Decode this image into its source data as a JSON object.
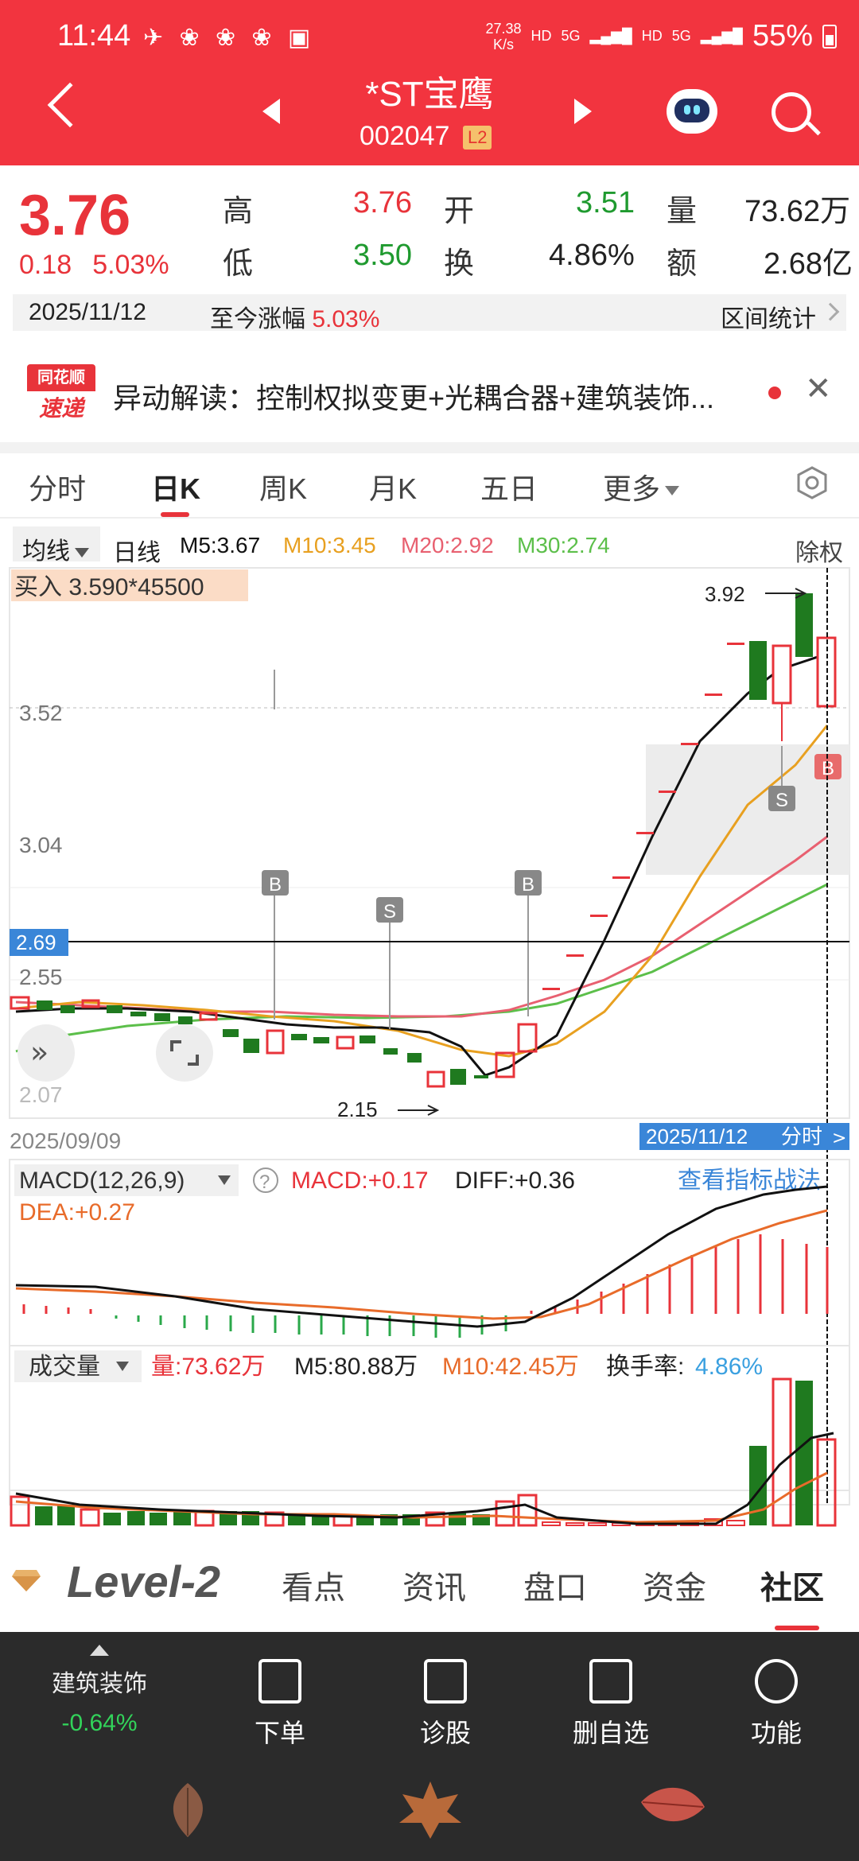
{
  "status_bar": {
    "time": "11:44",
    "speed_value": "27.38",
    "speed_unit": "K/s",
    "hd1": "HD",
    "net1": "5G",
    "hd2": "HD",
    "net2": "5G",
    "battery": "55%"
  },
  "header": {
    "stock_name": "*ST宝鹰",
    "stock_code": "002047",
    "level_badge": "L2"
  },
  "quote": {
    "price": "3.76",
    "change": "0.18",
    "change_pct": "5.03%",
    "high_label": "高",
    "high": "3.76",
    "open_label": "开",
    "open": "3.51",
    "volume_label": "量",
    "volume": "73.62万",
    "low_label": "低",
    "low": "3.50",
    "turnover_label": "换",
    "turnover": "4.86%",
    "amount_label": "额",
    "amount": "2.68亿"
  },
  "date_row": {
    "date": "2025/11/12",
    "since_label": "至今涨幅",
    "since_value": "5.03%",
    "range_stats": "区间统计"
  },
  "news": {
    "logo_top": "同花顺",
    "logo_bottom": "速递",
    "text": "异动解读：控制权拟变更+光耦合器+建筑装饰..."
  },
  "tabs": [
    {
      "label": "分时"
    },
    {
      "label": "日K"
    },
    {
      "label": "周K"
    },
    {
      "label": "月K"
    },
    {
      "label": "五日"
    },
    {
      "label": "更多"
    }
  ],
  "ma_row": {
    "selector": "均线",
    "period": "日线",
    "m5": "M5:3.67",
    "m10": "M10:3.45",
    "m20": "M20:2.92",
    "m30": "M30:2.74",
    "adjust": "除权"
  },
  "kchart": {
    "buy_label": "买入 3.590*45500",
    "y_labels": [
      "3.52",
      "3.04",
      "2.55",
      "2.07"
    ],
    "crosshair_value": "2.69",
    "max_label": "3.92",
    "min_label": "2.15",
    "start_date": "2025/09/09",
    "cursor_date": "2025/11/12",
    "cursor_link": "分时",
    "signal_b": "B",
    "signal_s": "S",
    "colors": {
      "up": "#e8333a",
      "down": "#1f7a1f",
      "ma5": "#111111",
      "ma10": "#e8a020",
      "ma20": "#e86070",
      "ma30": "#5cbf4a"
    }
  },
  "macd": {
    "selector": "MACD(12,26,9)",
    "help": "?",
    "macd": "MACD:+0.17",
    "diff": "DIFF:+0.36",
    "dea": "DEA:+0.27",
    "link": "查看指标战法"
  },
  "volume": {
    "selector": "成交量",
    "vol": "量:73.62万",
    "m5": "M5:80.88万",
    "m10": "M10:42.45万",
    "turnover_label": "换手率:",
    "turnover_value": "4.86%"
  },
  "bottom_tabs": [
    {
      "label": "Level-2"
    },
    {
      "label": "看点"
    },
    {
      "label": "资讯"
    },
    {
      "label": "盘口"
    },
    {
      "label": "资金"
    },
    {
      "label": "社区"
    }
  ],
  "toolbar": {
    "industry": "建筑装饰",
    "industry_change": "-0.64%",
    "items": [
      {
        "label": "下单",
        "icon": "order-icon"
      },
      {
        "label": "诊股",
        "icon": "diagnose-icon"
      },
      {
        "label": "删自选",
        "icon": "remove-watchlist-icon"
      },
      {
        "label": "功能",
        "icon": "menu-icon"
      }
    ]
  }
}
